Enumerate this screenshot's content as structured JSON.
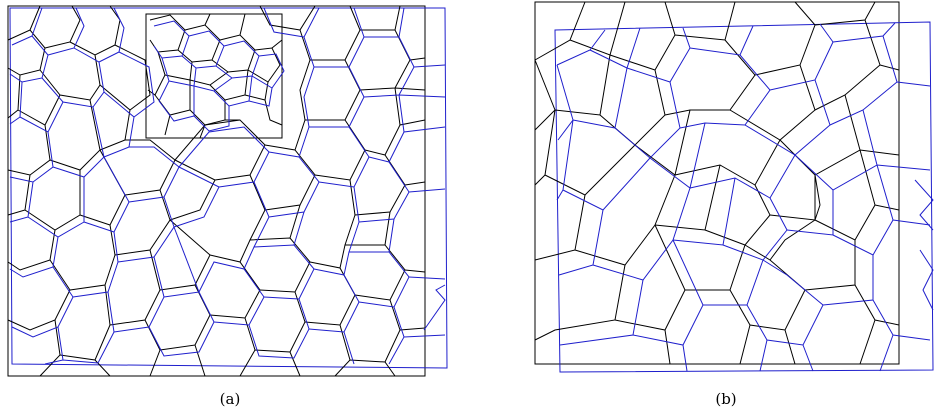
{
  "figure": {
    "panels": [
      {
        "caption": "(a)"
      },
      {
        "caption": "(b)"
      }
    ],
    "colors": {
      "reference_network": "#000000",
      "overlay_network": "#1f1fcc",
      "zoom_frame": "#000000"
    }
  }
}
